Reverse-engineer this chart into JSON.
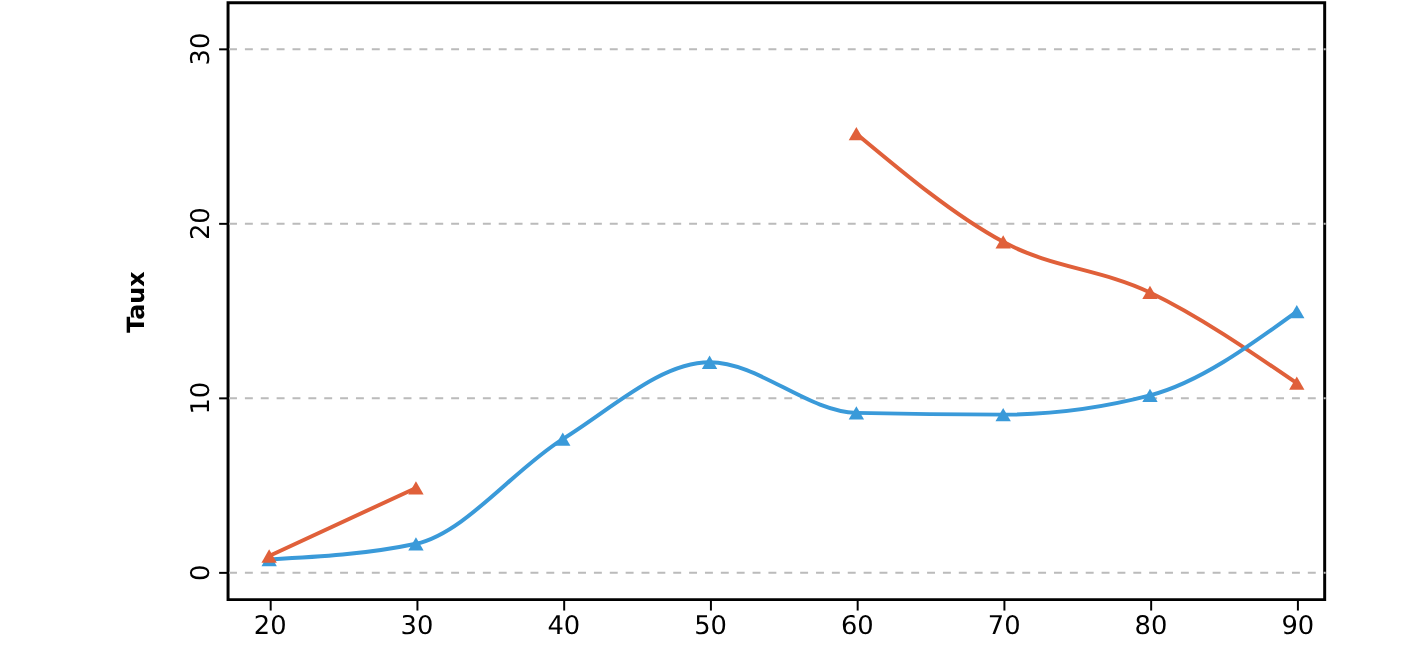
{
  "chart_data": {
    "type": "line",
    "ylabel": "Taux",
    "x": [
      20,
      30,
      40,
      50,
      60,
      70,
      80,
      90
    ],
    "series": [
      {
        "color": "#e0603a",
        "values": [
          0.9,
          4.8,
          null,
          null,
          25.1,
          18.9,
          16,
          10.8
        ]
      },
      {
        "color": "#3a9ad9",
        "values": [
          0.7,
          1.6,
          7.6,
          12,
          9.1,
          9,
          10.1,
          14.9
        ]
      }
    ],
    "xlim": [
      17.2,
      91.9
    ],
    "xticks": [
      20,
      30,
      40,
      50,
      60,
      70,
      80,
      90
    ],
    "ylim": [
      -1.6,
      32.6
    ],
    "yticks": [
      0,
      10,
      20,
      30
    ],
    "grid": "y",
    "legend": false,
    "marker": "triangle",
    "line_style": "solid"
  }
}
